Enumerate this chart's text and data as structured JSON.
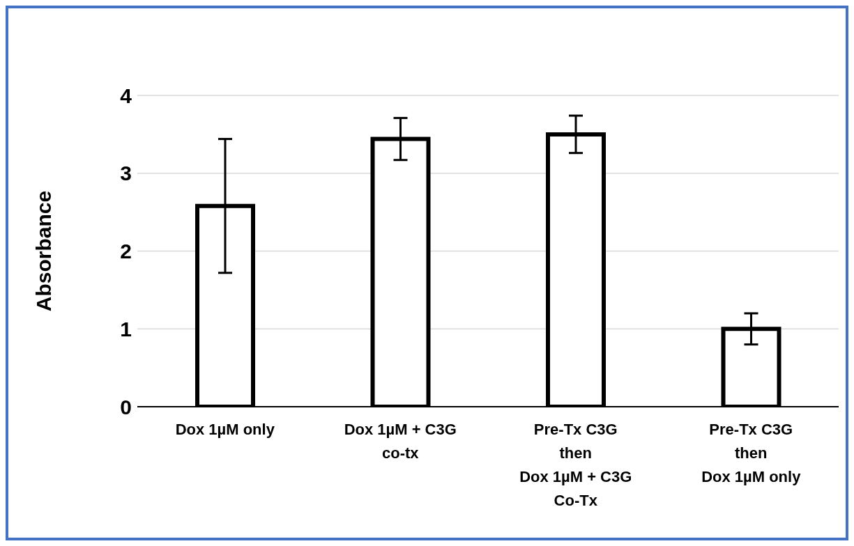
{
  "chart_data": {
    "type": "bar",
    "ylabel": "Absorbance",
    "categories": [
      "Dox 1µM only",
      "Dox 1µM + C3G\nco-tx",
      "Pre-Tx C3G\nthen\nDox 1µM + C3G\nCo-Tx",
      "Pre-Tx C3G\nthen\nDox 1µM only"
    ],
    "values": [
      2.58,
      3.44,
      3.5,
      1.0
    ],
    "errors": [
      0.86,
      0.27,
      0.24,
      0.2
    ],
    "color": "#ffffff",
    "ylim": [
      0,
      4
    ],
    "yticks": [
      0,
      1,
      2,
      3,
      4
    ],
    "grid": "y"
  }
}
